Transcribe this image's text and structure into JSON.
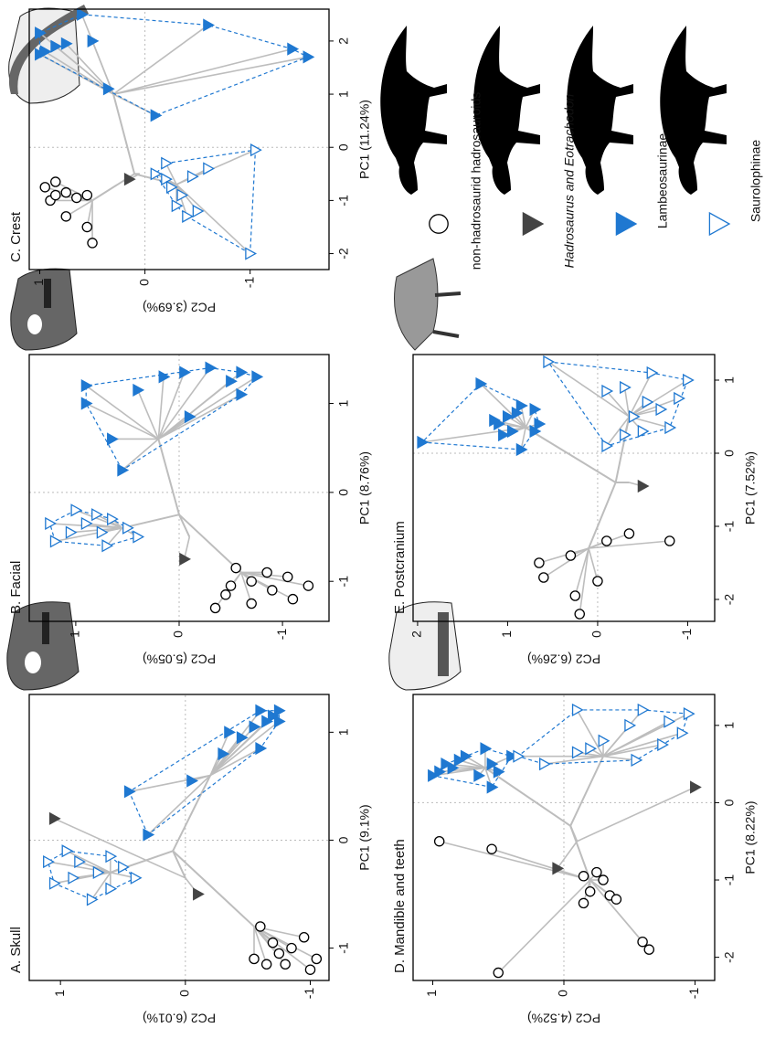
{
  "legend": {
    "series": [
      {
        "name": "non-hadrosaurid hadrosauroids",
        "color": "#000000",
        "marker": "circle",
        "filled": false,
        "hull": false
      },
      {
        "name": "Hadrosaurus and Eotrachodon",
        "color": "#444444",
        "marker": "triangle",
        "filled": true,
        "hull": false
      },
      {
        "name": "Lambeosaurinae",
        "color": "#1f78d1",
        "marker": "triangle",
        "filled": true,
        "hull": true
      },
      {
        "name": "Saurolophinae",
        "color": "#1f78d1",
        "marker": "triangle",
        "filled": false,
        "hull": true
      }
    ]
  },
  "chart_data": [
    {
      "type": "scatter",
      "title": "A. Skull",
      "xlabel": "PC1 (9.1%)",
      "ylabel": "PC2 (6.01%)",
      "xlim": [
        -1.3,
        1.35
      ],
      "ylim": [
        -1.15,
        1.25
      ],
      "xticks": [
        -1,
        0,
        1
      ],
      "yticks": [
        -1,
        0,
        1
      ],
      "zero_lines": true,
      "root": [
        -0.1,
        0.1
      ],
      "series": [
        {
          "x": [
            -1.1,
            -1.05,
            -1.15,
            -0.95,
            -1.2,
            -1.1,
            -0.9,
            -1.0,
            -0.8,
            -1.15
          ],
          "y": [
            -0.55,
            -0.75,
            -0.8,
            -0.7,
            -1.0,
            -1.05,
            -0.95,
            -0.85,
            -0.6,
            -0.65
          ],
          "hub": [
            -0.8,
            -0.55
          ]
        },
        {
          "x": [
            -0.5,
            0.2
          ],
          "y": [
            -0.1,
            1.05
          ],
          "hub": [
            -0.35,
            0.0
          ]
        },
        {
          "x": [
            0.05,
            0.45,
            0.55,
            0.8,
            0.95,
            1.05,
            1.1,
            1.15,
            1.2,
            1.0,
            0.85,
            1.1,
            1.2
          ],
          "y": [
            0.3,
            0.45,
            -0.05,
            -0.3,
            -0.45,
            -0.55,
            -0.65,
            -0.7,
            -0.6,
            -0.35,
            -0.6,
            -0.75,
            -0.75
          ],
          "hub": [
            0.6,
            -0.2
          ]
        },
        {
          "x": [
            -0.55,
            -0.4,
            -0.35,
            -0.3,
            -0.2,
            -0.15,
            -0.25,
            -0.45,
            -0.1,
            -0.35,
            -0.2
          ],
          "y": [
            0.75,
            1.05,
            0.9,
            0.7,
            0.85,
            0.6,
            0.5,
            0.6,
            0.95,
            0.4,
            1.1
          ],
          "hub": [
            -0.3,
            0.6
          ]
        }
      ]
    },
    {
      "type": "scatter",
      "title": "B. Facial",
      "xlabel": "PC1 (8.76%)",
      "ylabel": "PC2 (5.05%)",
      "xlim": [
        -1.45,
        1.55
      ],
      "ylim": [
        -1.45,
        1.45
      ],
      "xticks": [
        -1,
        0,
        1
      ],
      "yticks": [
        -1,
        0,
        1
      ],
      "zero_lines": true,
      "root": [
        -0.25,
        0.0
      ],
      "series": [
        {
          "x": [
            -1.3,
            -1.15,
            -1.05,
            -1.25,
            -1.1,
            -0.95,
            -1.2,
            -1.05,
            -0.9,
            -1.0,
            -0.85
          ],
          "y": [
            -0.35,
            -0.45,
            -0.5,
            -0.7,
            -0.9,
            -1.05,
            -1.1,
            -1.25,
            -0.85,
            -0.7,
            -0.55
          ],
          "hub": [
            -0.9,
            -0.6
          ]
        },
        {
          "x": [
            -0.75
          ],
          "y": [
            -0.05
          ],
          "hub": [
            -0.5,
            -0.1
          ]
        },
        {
          "x": [
            0.25,
            0.6,
            1.0,
            1.2,
            1.15,
            1.3,
            1.35,
            1.4,
            1.25,
            1.3,
            1.1,
            0.85,
            1.35
          ],
          "y": [
            0.55,
            0.65,
            0.9,
            0.9,
            0.4,
            0.15,
            -0.05,
            -0.3,
            -0.5,
            -0.75,
            -0.6,
            -0.1,
            -0.6
          ],
          "hub": [
            0.6,
            0.2
          ]
        },
        {
          "x": [
            -0.6,
            -0.55,
            -0.45,
            -0.35,
            -0.3,
            -0.4,
            -0.5,
            -0.25,
            -0.2,
            -0.35,
            -0.45
          ],
          "y": [
            0.7,
            1.2,
            1.05,
            0.9,
            0.65,
            0.5,
            0.4,
            0.8,
            1.0,
            1.25,
            0.75
          ],
          "hub": [
            -0.4,
            0.55
          ]
        }
      ]
    },
    {
      "type": "scatter",
      "title": "C. Crest",
      "xlabel": "PC1 (11.24%)",
      "ylabel": "PC2 (3.69%)",
      "xlim": [
        -2.3,
        2.6
      ],
      "ylim": [
        -1.75,
        1.1
      ],
      "xticks": [
        -2,
        -1,
        0,
        1,
        2
      ],
      "yticks": [
        -1,
        0,
        1
      ],
      "zero_lines": true,
      "root": [
        -0.5,
        0.1
      ],
      "series": [
        {
          "x": [
            -1.8,
            -1.5,
            -1.3,
            -1.0,
            -0.9,
            -0.85,
            -0.95,
            -0.75,
            -0.65,
            -0.9
          ],
          "y": [
            0.5,
            0.55,
            0.75,
            0.9,
            0.85,
            0.75,
            0.65,
            0.95,
            0.85,
            0.55
          ],
          "hub": [
            -1.0,
            0.5
          ]
        },
        {
          "x": [
            -0.6
          ],
          "y": [
            0.15
          ],
          "hub": [
            -0.5,
            0.05
          ]
        },
        {
          "x": [
            2.5,
            2.3,
            1.7,
            1.75,
            1.8,
            1.9,
            1.95,
            2.0,
            2.15,
            1.1,
            0.6,
            1.85
          ],
          "y": [
            0.6,
            -0.6,
            -1.55,
            1.0,
            0.95,
            0.85,
            0.75,
            0.5,
            1.0,
            0.35,
            -0.1,
            -1.4
          ],
          "hub": [
            1.0,
            0.3
          ]
        },
        {
          "x": [
            -0.05,
            -2.0,
            -1.3,
            -1.1,
            -0.9,
            -0.6,
            -0.5,
            -0.3,
            -0.4,
            -0.75,
            -1.2,
            -0.55
          ],
          "y": [
            -1.05,
            -1.0,
            -0.4,
            -0.3,
            -0.35,
            -0.2,
            -0.1,
            -0.2,
            -0.6,
            -0.25,
            -0.5,
            -0.45
          ],
          "hub": [
            -0.7,
            -0.3
          ]
        }
      ]
    },
    {
      "type": "scatter",
      "title": "D. Mandible and teeth",
      "xlabel": "PC1 (8.22%)",
      "ylabel": "PC2 (4.52%)",
      "xlim": [
        -2.3,
        1.4
      ],
      "ylim": [
        -1.15,
        1.15
      ],
      "xticks": [
        -2,
        -1,
        0,
        1
      ],
      "yticks": [
        -1,
        0,
        1
      ],
      "zero_lines": true,
      "root": [
        -0.3,
        -0.05
      ],
      "series": [
        {
          "x": [
            -2.2,
            -1.9,
            -1.8,
            -1.2,
            -1.3,
            -1.15,
            -1.0,
            -0.95,
            -1.25,
            -0.5,
            -0.6,
            -0.9
          ],
          "y": [
            0.5,
            -0.65,
            -0.6,
            -0.35,
            -0.15,
            -0.2,
            -0.3,
            -0.15,
            -0.4,
            0.95,
            0.55,
            -0.25
          ],
          "hub": [
            -1.0,
            -0.2
          ]
        },
        {
          "x": [
            -0.85,
            0.2
          ],
          "y": [
            0.05,
            -1.0
          ],
          "hub": [
            -0.5,
            -0.1
          ]
        },
        {
          "x": [
            0.35,
            0.4,
            0.45,
            0.5,
            0.55,
            0.6,
            0.35,
            0.5,
            0.4,
            0.2,
            0.6,
            0.7
          ],
          "y": [
            1.0,
            0.95,
            0.85,
            0.9,
            0.8,
            0.75,
            0.65,
            0.55,
            0.5,
            0.55,
            0.4,
            0.6
          ],
          "hub": [
            0.45,
            0.6
          ]
        },
        {
          "x": [
            0.6,
            0.5,
            0.65,
            0.8,
            1.0,
            1.2,
            1.05,
            1.15,
            0.9,
            0.75,
            0.55,
            0.7,
            1.2
          ],
          "y": [
            0.35,
            0.15,
            -0.1,
            -0.3,
            -0.5,
            -0.6,
            -0.8,
            -0.95,
            -0.9,
            -0.75,
            -0.55,
            -0.2,
            -0.1
          ],
          "hub": [
            0.6,
            -0.3
          ]
        }
      ]
    },
    {
      "type": "scatter",
      "title": "E. Postcranium",
      "xlabel": "PC1 (7.52%)",
      "ylabel": "PC2 (6.26%)",
      "xlim": [
        -2.3,
        1.35
      ],
      "ylim": [
        -1.3,
        2.05
      ],
      "xticks": [
        -2,
        -1,
        0,
        1
      ],
      "yticks": [
        -1,
        0,
        1,
        2
      ],
      "zero_lines": true,
      "root": [
        -0.4,
        -0.2
      ],
      "series": [
        {
          "x": [
            -2.2,
            -1.95,
            -1.75,
            -1.7,
            -1.5,
            -1.4,
            -1.2,
            -1.1,
            -1.2
          ],
          "y": [
            0.2,
            0.25,
            0.0,
            0.6,
            0.65,
            0.3,
            -0.8,
            -0.35,
            -0.1
          ],
          "hub": [
            -1.3,
            0.1
          ]
        },
        {
          "x": [
            -0.45
          ],
          "y": [
            -0.5
          ],
          "hub": [
            -0.4,
            -0.35
          ]
        },
        {
          "x": [
            0.15,
            0.05,
            0.25,
            0.3,
            0.4,
            0.45,
            0.5,
            0.55,
            0.6,
            0.65,
            0.4,
            0.95,
            0.3
          ],
          "y": [
            1.95,
            0.85,
            1.05,
            0.95,
            1.1,
            1.15,
            1.0,
            0.9,
            0.7,
            0.85,
            0.65,
            1.3,
            0.7
          ],
          "hub": [
            0.35,
            0.8
          ]
        },
        {
          "x": [
            0.1,
            0.3,
            0.5,
            0.6,
            0.7,
            0.35,
            0.75,
            0.9,
            1.0,
            1.1,
            1.25,
            0.85,
            0.25
          ],
          "y": [
            -0.1,
            -0.5,
            -0.4,
            -0.7,
            -0.55,
            -0.8,
            -0.9,
            -0.3,
            -1.0,
            -0.6,
            0.55,
            -0.1,
            -0.3
          ],
          "hub": [
            0.5,
            -0.35
          ]
        }
      ]
    }
  ]
}
